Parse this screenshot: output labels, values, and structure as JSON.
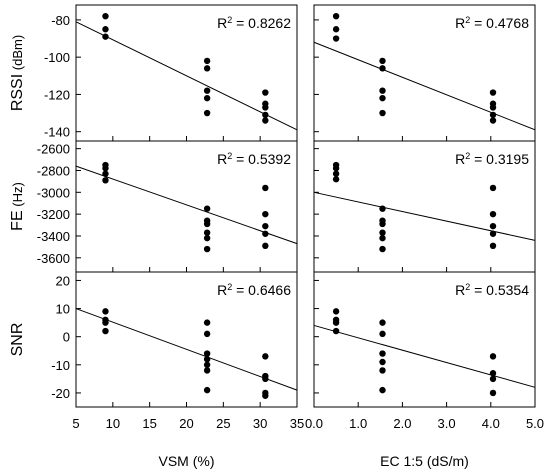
{
  "x_axes": {
    "vsm": {
      "label": "VSM (%)",
      "min": 5,
      "max": 35,
      "ticks": [
        "5",
        "10",
        "15",
        "20",
        "25",
        "30",
        "35"
      ]
    },
    "ec": {
      "label": "EC 1:5 (dS/m)",
      "min": 0,
      "max": 5,
      "ticks": [
        "0.0",
        "1.0",
        "2.0",
        "3.0",
        "4.0",
        "5.0"
      ]
    }
  },
  "chart_data": [
    {
      "type": "scatter",
      "row": "rssi",
      "col": "vsm",
      "ylabel_main": "RSSI",
      "ylabel_unit": " (dBm)",
      "ylim": [
        -145,
        -72
      ],
      "yticks": [
        -80,
        -100,
        -120,
        -140
      ],
      "ytick_labels": [
        "-80",
        "-100",
        "-120",
        "-140"
      ],
      "r2_label": "R",
      "r2_sup": "2",
      "r2_text": " = 0.8262",
      "x": [
        9,
        9,
        9,
        22.8,
        22.8,
        22.8,
        22.8,
        22.8,
        30.7,
        30.7,
        30.7,
        30.7,
        30.7
      ],
      "y": [
        -78,
        -85,
        -89,
        -102,
        -106,
        -118,
        -122,
        -130,
        -119,
        -125,
        -127,
        -131,
        -134
      ],
      "fit": {
        "x": [
          5,
          35
        ],
        "y": [
          -81,
          -139
        ]
      }
    },
    {
      "type": "scatter",
      "row": "rssi",
      "col": "ec",
      "ylim": [
        -145,
        -72
      ],
      "yticks": [
        -80,
        -100,
        -120,
        -140
      ],
      "r2_label": "R",
      "r2_sup": "2",
      "r2_text": " = 0.4768",
      "x": [
        0.5,
        0.5,
        0.5,
        1.55,
        1.55,
        1.55,
        1.55,
        1.55,
        4.05,
        4.05,
        4.05,
        4.05,
        4.05
      ],
      "y": [
        -78,
        -85,
        -90,
        -102,
        -106,
        -118,
        -122,
        -130,
        -119,
        -125,
        -127,
        -131,
        -134
      ],
      "fit": {
        "x": [
          0,
          5
        ],
        "y": [
          -92,
          -139
        ]
      }
    },
    {
      "type": "scatter",
      "row": "fe",
      "col": "vsm",
      "ylabel_main": "FE",
      "ylabel_unit": " (Hz)",
      "ylim": [
        -3730,
        -2530
      ],
      "yticks": [
        -2600,
        -2800,
        -3000,
        -3200,
        -3400,
        -3600
      ],
      "ytick_labels": [
        "-2600",
        "-2800",
        "-3000",
        "-3200",
        "-3400",
        "-3600"
      ],
      "r2_label": "R",
      "r2_sup": "2",
      "r2_text": " = 0.5392",
      "x": [
        9,
        9,
        9,
        9,
        22.8,
        22.8,
        22.8,
        22.8,
        22.8,
        22.8,
        30.7,
        30.7,
        30.7,
        30.7,
        30.7
      ],
      "y": [
        -2750,
        -2780,
        -2830,
        -2890,
        -3150,
        -3260,
        -3290,
        -3370,
        -3420,
        -3520,
        -2960,
        -3200,
        -3310,
        -3380,
        -3490
      ],
      "fit": {
        "x": [
          5,
          35
        ],
        "y": [
          -2760,
          -3470
        ]
      }
    },
    {
      "type": "scatter",
      "row": "fe",
      "col": "ec",
      "ylim": [
        -3730,
        -2530
      ],
      "yticks": [
        -2600,
        -2800,
        -3000,
        -3200,
        -3400,
        -3600
      ],
      "r2_label": "R",
      "r2_sup": "2",
      "r2_text": " = 0.3195",
      "x": [
        0.5,
        0.5,
        0.5,
        0.5,
        1.55,
        1.55,
        1.55,
        1.55,
        1.55,
        1.55,
        4.05,
        4.05,
        4.05,
        4.05,
        4.05
      ],
      "y": [
        -2750,
        -2780,
        -2830,
        -2880,
        -3150,
        -3260,
        -3290,
        -3370,
        -3420,
        -3520,
        -2960,
        -3200,
        -3310,
        -3380,
        -3490
      ],
      "fit": {
        "x": [
          0,
          5
        ],
        "y": [
          -3000,
          -3440
        ]
      }
    },
    {
      "type": "scatter",
      "row": "snr",
      "col": "vsm",
      "ylabel_main": "SNR",
      "ylim": [
        -25,
        23
      ],
      "yticks": [
        20,
        10,
        0,
        -10,
        -20
      ],
      "ytick_labels": [
        "20",
        "10",
        "0",
        "-10",
        "-20"
      ],
      "r2_label": "R",
      "r2_sup": "2",
      "r2_text": " = 0.6466",
      "x": [
        9,
        9,
        9,
        9,
        22.8,
        22.8,
        22.8,
        22.8,
        22.8,
        22.8,
        22.8,
        30.7,
        30.7,
        30.7,
        30.7,
        30.7
      ],
      "y": [
        9,
        6,
        5,
        2,
        5,
        1,
        -6,
        -8,
        -10,
        -12,
        -19,
        -7,
        -14,
        -15,
        -20,
        -21
      ],
      "fit": {
        "x": [
          5,
          35
        ],
        "y": [
          10,
          -19
        ]
      }
    },
    {
      "type": "scatter",
      "row": "snr",
      "col": "ec",
      "ylim": [
        -25,
        23
      ],
      "yticks": [
        20,
        10,
        0,
        -10,
        -20
      ],
      "r2_label": "R",
      "r2_sup": "2",
      "r2_text": " = 0.5354",
      "x": [
        0.5,
        0.5,
        0.5,
        0.5,
        1.55,
        1.55,
        1.55,
        1.55,
        1.55,
        1.55,
        4.05,
        4.05,
        4.05,
        4.05
      ],
      "y": [
        9,
        6,
        5,
        2,
        5,
        1,
        -6,
        -9,
        -12,
        -19,
        -7,
        -13,
        -15,
        -20
      ],
      "fit": {
        "x": [
          0,
          5
        ],
        "y": [
          4,
          -18
        ]
      }
    }
  ]
}
